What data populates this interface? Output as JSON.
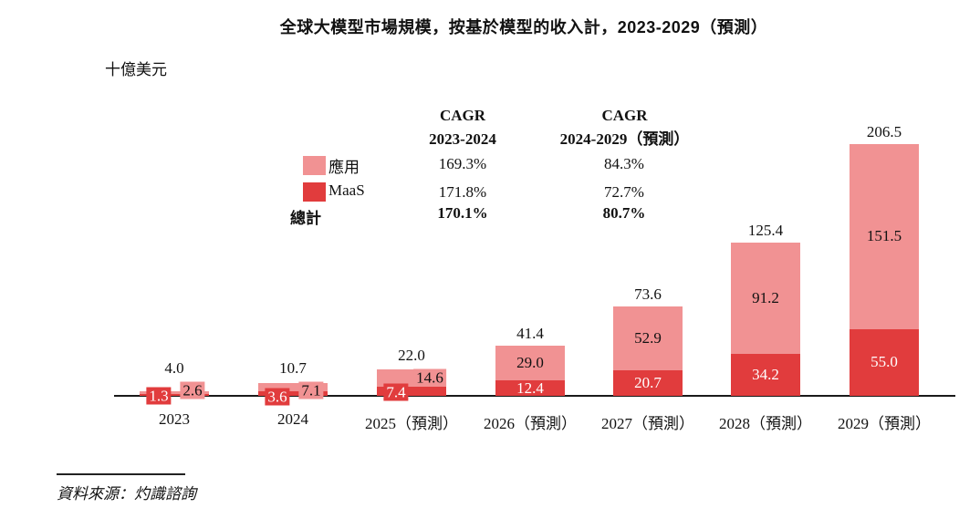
{
  "title": "全球大模型市場規模，按基於模型的收入計，2023-2029（預測）",
  "unit_label": "十億美元",
  "cagr_table": {
    "col1_header_line1": "CAGR",
    "col1_header_line2": "2023-2024",
    "col2_header_line1": "CAGR",
    "col2_header_line2": "2024-2029（預測）",
    "rows": [
      {
        "label": "應用",
        "swatch": "app_pink",
        "col1": "169.3%",
        "col2": "84.3%",
        "bold": false
      },
      {
        "label": "MaaS",
        "swatch": "maas_red",
        "col1": "171.8%",
        "col2": "72.7%",
        "bold": false
      },
      {
        "label": "總計",
        "swatch": null,
        "col1": "170.1%",
        "col2": "80.7%",
        "bold": true
      }
    ]
  },
  "source": "資料來源：灼識諮詢",
  "colors": {
    "app_pink": "#F19293",
    "maas_red": "#E13C3D",
    "axis": "#1A1A1A",
    "text": "#111111",
    "inside_label_on_red": "#FFFFFF",
    "inside_label_on_pink": "#111111"
  },
  "chart_data": {
    "type": "bar",
    "stacked": true,
    "title": "全球大模型市場規模，按基於模型的收入計，2023-2029（預測）",
    "ylabel": "十億美元",
    "unit": "billion USD",
    "categories": [
      "2023",
      "2024",
      "2025（預測）",
      "2026（預測）",
      "2027（預測）",
      "2028（預測）",
      "2029（預測）"
    ],
    "series": [
      {
        "name": "MaaS",
        "color": "#E13C3D",
        "values": [
          1.3,
          3.6,
          7.4,
          12.4,
          20.7,
          34.2,
          55.0
        ]
      },
      {
        "name": "應用",
        "color": "#F19293",
        "values": [
          2.6,
          7.1,
          14.6,
          29.0,
          52.9,
          91.2,
          151.5
        ]
      }
    ],
    "totals": [
      4.0,
      10.7,
      22.0,
      41.4,
      73.6,
      125.4,
      206.5
    ],
    "cagr": {
      "2023-2024": {
        "應用": "169.3%",
        "MaaS": "171.8%",
        "總計": "170.1%"
      },
      "2024-2029（預測）": {
        "應用": "84.3%",
        "MaaS": "72.7%",
        "總計": "80.7%"
      }
    },
    "ylim": [
      0,
      220
    ],
    "grid": false,
    "legend_position": "upper-center-left"
  }
}
